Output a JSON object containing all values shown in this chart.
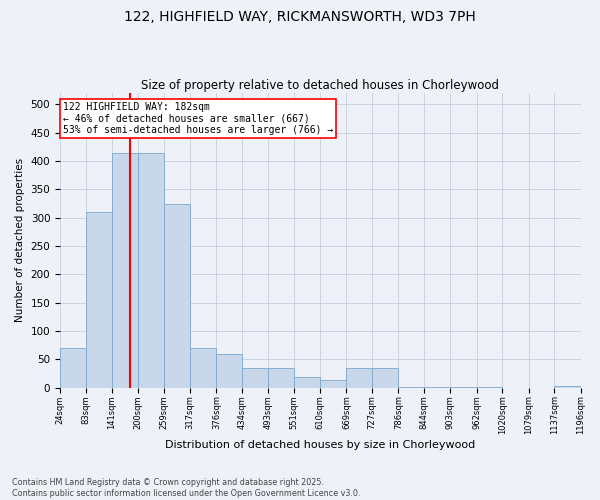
{
  "title1": "122, HIGHFIELD WAY, RICKMANSWORTH, WD3 7PH",
  "title2": "Size of property relative to detached houses in Chorleywood",
  "xlabel": "Distribution of detached houses by size in Chorleywood",
  "ylabel": "Number of detached properties",
  "bin_edges": [
    24,
    83,
    141,
    200,
    259,
    317,
    376,
    434,
    493,
    551,
    610,
    669,
    727,
    786,
    844,
    903,
    962,
    1020,
    1079,
    1137,
    1196
  ],
  "bar_heights": [
    70,
    310,
    415,
    415,
    325,
    70,
    60,
    35,
    35,
    18,
    13,
    35,
    35,
    2,
    2,
    2,
    2,
    0,
    0,
    3
  ],
  "bar_color": "#c8d8ea",
  "bar_edgecolor": "#7ba8cc",
  "vline_x": 182,
  "vline_color": "red",
  "annotation_text": "122 HIGHFIELD WAY: 182sqm\n← 46% of detached houses are smaller (667)\n53% of semi-detached houses are larger (766) →",
  "annotation_box_color": "white",
  "annotation_box_edgecolor": "red",
  "ylim": [
    0,
    520
  ],
  "yticks": [
    0,
    50,
    100,
    150,
    200,
    250,
    300,
    350,
    400,
    450,
    500
  ],
  "footnote": "Contains HM Land Registry data © Crown copyright and database right 2025.\nContains public sector information licensed under the Open Government Licence v3.0.",
  "background_color": "#eef2f8",
  "grid_color": "#c5cfe0"
}
